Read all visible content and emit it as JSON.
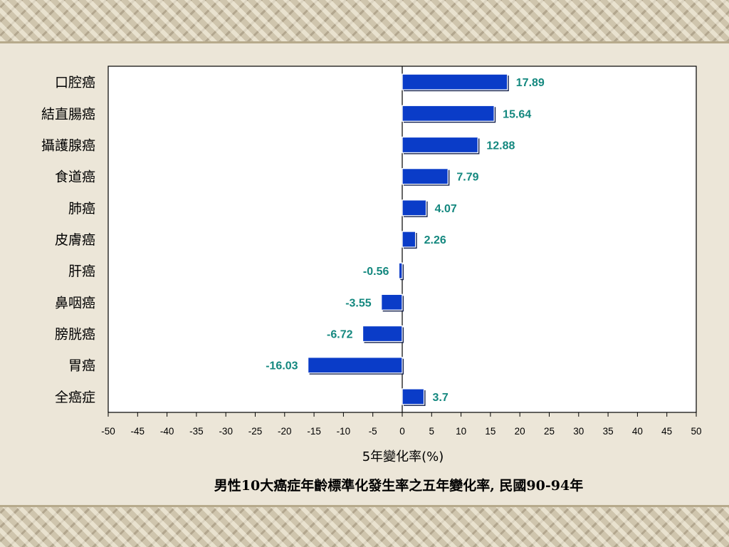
{
  "chart_data": {
    "type": "bar",
    "orientation": "horizontal",
    "categories": [
      "口腔癌",
      "結直腸癌",
      "攝護腺癌",
      "食道癌",
      "肺癌",
      "皮膚癌",
      "肝癌",
      "鼻咽癌",
      "膀胱癌",
      "胃癌",
      "全癌症"
    ],
    "values": [
      17.89,
      15.64,
      12.88,
      7.79,
      4.07,
      2.26,
      -0.56,
      -3.55,
      -6.72,
      -16.03,
      3.7
    ],
    "value_labels": [
      "17.89",
      "15.64",
      "12.88",
      "7.79",
      "4.07",
      "2.26",
      "-0.56",
      "-3.55",
      "-6.72",
      "-16.03",
      "3.7"
    ],
    "xlim": [
      -50,
      50
    ],
    "xticks": [
      -50,
      -45,
      -40,
      -35,
      -30,
      -25,
      -20,
      -15,
      -10,
      -5,
      0,
      5,
      10,
      15,
      20,
      25,
      30,
      35,
      40,
      45,
      50
    ],
    "xlabel": "5年變化率(%)",
    "caption": "男性10大癌症年齡標準化發生率之五年變化率, 民國90-94年",
    "grid": false,
    "bar_color": "#0a3cc8",
    "label_color": "#14887f"
  }
}
